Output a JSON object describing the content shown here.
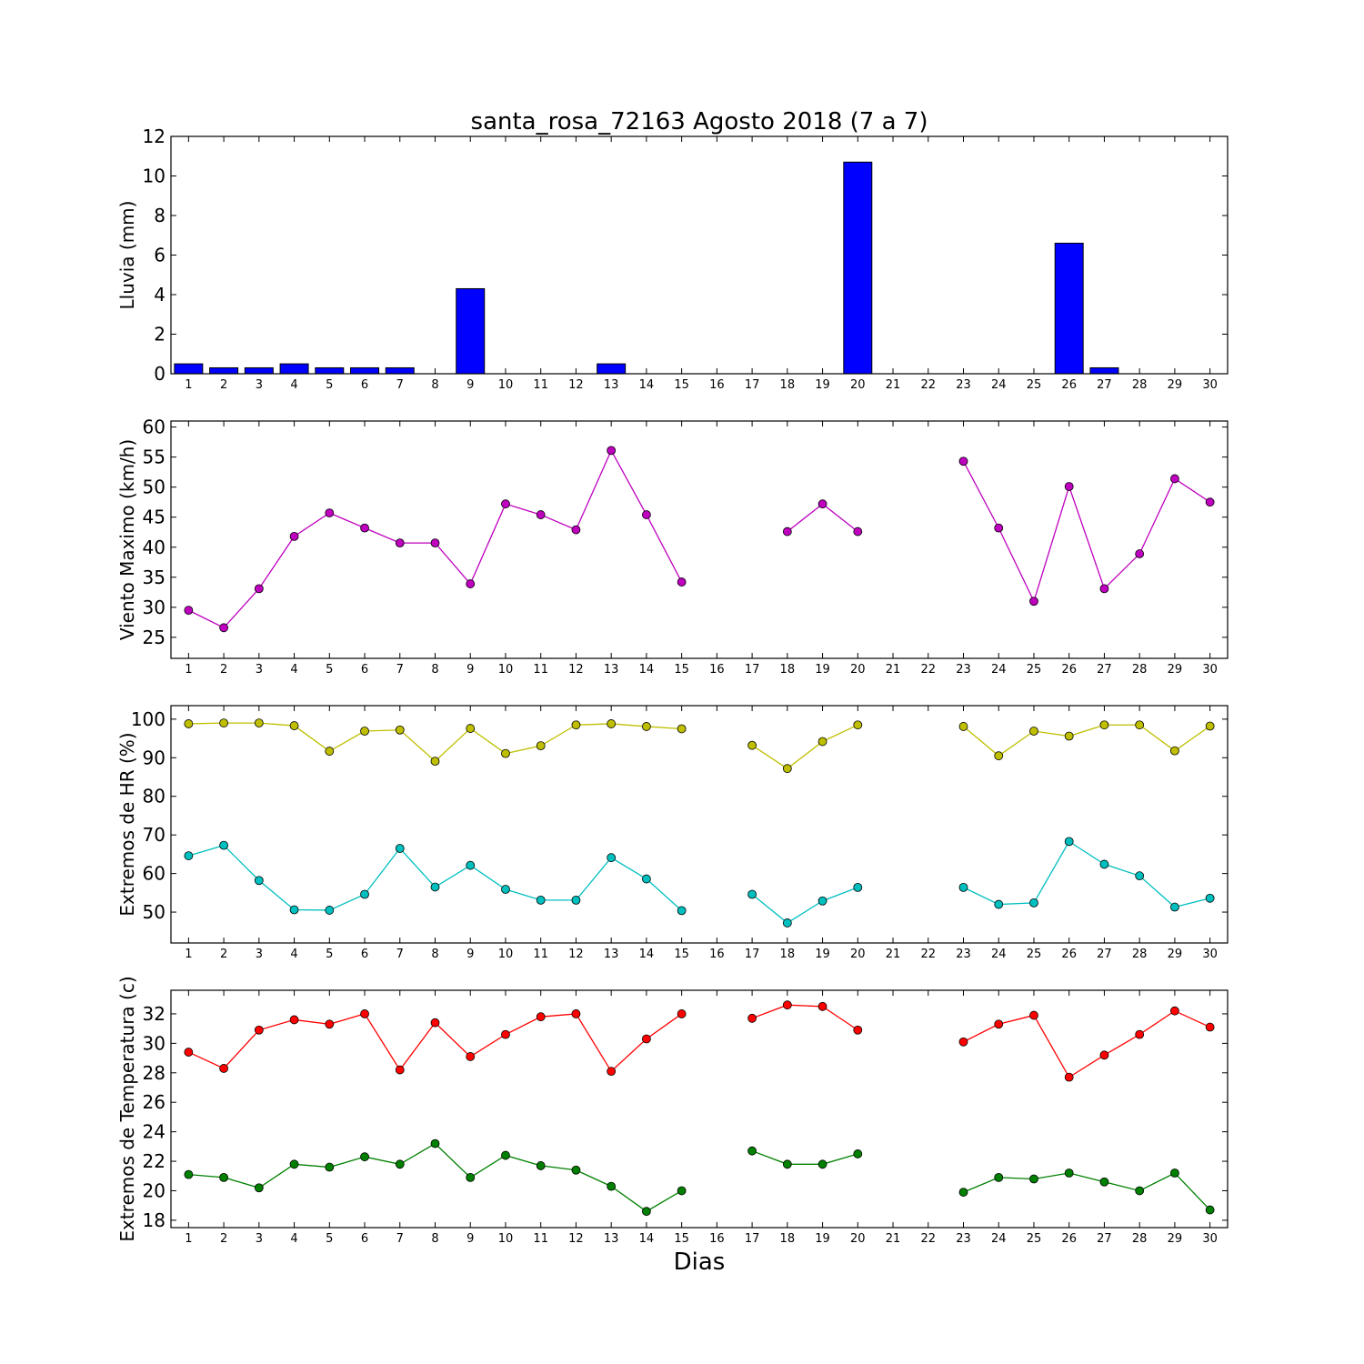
{
  "chart_data": {
    "title": "santa_rosa_72163 Agosto 2018  (7 a 7)",
    "xlabel": "Dias",
    "days": [
      1,
      2,
      3,
      4,
      5,
      6,
      7,
      8,
      9,
      10,
      11,
      12,
      13,
      14,
      15,
      16,
      17,
      18,
      19,
      20,
      21,
      22,
      23,
      24,
      25,
      26,
      27,
      28,
      29,
      30
    ],
    "panels": [
      {
        "type": "bar",
        "ylabel": "Lluvia (mm)",
        "ylim": [
          0,
          12
        ],
        "yticks": [
          0,
          2,
          4,
          6,
          8,
          10,
          12
        ],
        "series": [
          {
            "color": "#0000ff",
            "values": [
              0.5,
              0.3,
              0.3,
              0.5,
              0.3,
              0.3,
              0.3,
              0,
              4.3,
              0,
              0,
              0,
              0.5,
              0,
              0,
              0,
              0,
              0,
              0,
              10.7,
              0,
              0,
              0,
              0,
              0,
              6.6,
              0.3,
              0,
              0,
              0
            ]
          }
        ]
      },
      {
        "type": "line",
        "ylabel": "Viento Maximo (km/h)",
        "ylim": [
          21.5,
          61
        ],
        "yticks": [
          25,
          30,
          35,
          40,
          45,
          50,
          55,
          60
        ],
        "series": [
          {
            "color": "#bf00bf",
            "values": [
              29.5,
              26.6,
              33.1,
              41.8,
              45.7,
              43.2,
              40.7,
              40.7,
              33.9,
              47.2,
              45.4,
              42.9,
              56.1,
              45.4,
              34.2,
              null,
              null,
              42.6,
              47.2,
              42.6,
              null,
              null,
              54.3,
              43.2,
              31.0,
              50.1,
              33.1,
              38.9,
              51.4,
              47.5
            ]
          }
        ]
      },
      {
        "type": "line",
        "ylabel": "Extremos de HR (%)",
        "ylim": [
          42,
          103.5
        ],
        "yticks": [
          50,
          60,
          70,
          80,
          90,
          100
        ],
        "series": [
          {
            "color": "#bfbf00",
            "values": [
              98.8,
              99.0,
              99.0,
              98.3,
              91.7,
              96.9,
              97.2,
              89.1,
              97.6,
              91.1,
              93.1,
              98.5,
              98.8,
              98.1,
              97.5,
              null,
              93.2,
              87.2,
              94.2,
              98.5,
              null,
              null,
              98.1,
              90.5,
              96.9,
              95.6,
              98.5,
              98.5,
              91.8,
              98.2
            ]
          },
          {
            "color": "#00bfbf",
            "values": [
              64.6,
              67.3,
              58.2,
              50.6,
              50.5,
              54.6,
              66.5,
              56.5,
              62.1,
              55.9,
              53.1,
              53.1,
              64.1,
              58.6,
              50.4,
              null,
              54.6,
              47.2,
              52.9,
              56.4,
              null,
              null,
              56.4,
              52.0,
              52.4,
              68.3,
              62.4,
              59.4,
              51.3,
              53.6
            ]
          }
        ]
      },
      {
        "type": "line",
        "ylabel": "Extremos de Temperatura (c)",
        "ylim": [
          17.5,
          33.6
        ],
        "yticks": [
          18,
          20,
          22,
          24,
          26,
          28,
          30,
          32
        ],
        "series": [
          {
            "color": "#ff0000",
            "values": [
              29.4,
              28.3,
              30.9,
              31.6,
              31.3,
              32.0,
              28.2,
              31.4,
              29.1,
              30.6,
              31.8,
              32.0,
              28.1,
              30.3,
              32.0,
              null,
              31.7,
              32.6,
              32.5,
              30.9,
              null,
              null,
              30.1,
              31.3,
              31.9,
              27.7,
              29.2,
              30.6,
              32.2,
              31.1
            ]
          },
          {
            "color": "#008000",
            "values": [
              21.1,
              20.9,
              20.2,
              21.8,
              21.6,
              22.3,
              21.8,
              23.2,
              20.9,
              22.4,
              21.7,
              21.4,
              20.3,
              18.6,
              20.0,
              null,
              22.7,
              21.8,
              21.8,
              22.5,
              null,
              null,
              19.9,
              20.9,
              20.8,
              21.2,
              20.6,
              20.0,
              21.2,
              18.7
            ]
          }
        ]
      }
    ]
  }
}
